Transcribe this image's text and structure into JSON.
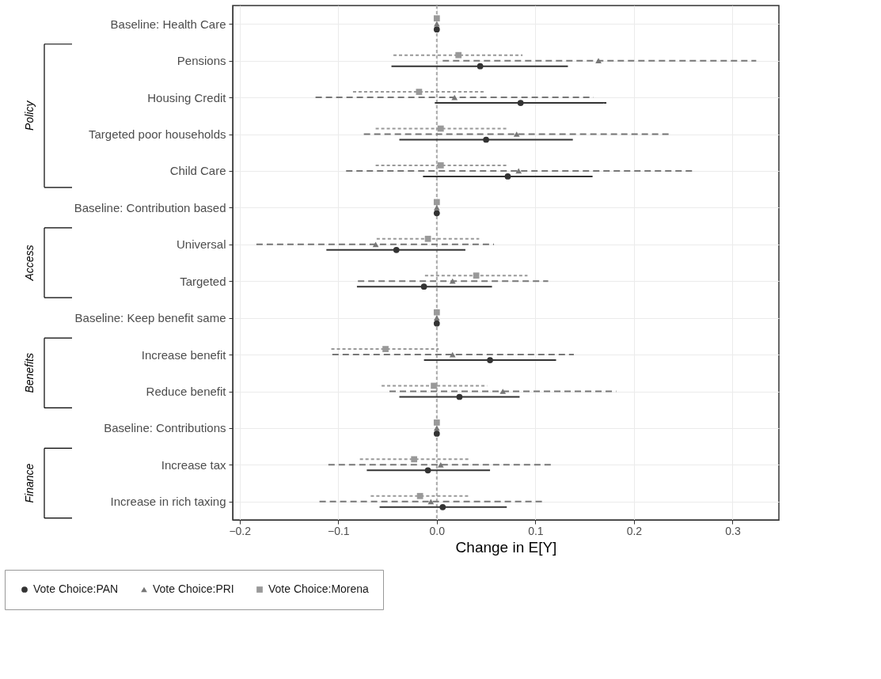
{
  "chart_data": {
    "type": "scatter",
    "orientation": "horizontal",
    "xlabel": "Change in E[Y]",
    "categories": [
      "Baseline: Health Care",
      "Pensions",
      "Housing Credit",
      "Targeted poor households",
      "Child Care",
      "Baseline: Contribution based",
      "Universal",
      "Targeted",
      "Baseline: Keep benefit same",
      "Increase benefit",
      "Reduce benefit",
      "Baseline: Contributions",
      "Increase tax",
      "Increase in rich taxing"
    ],
    "xlim": [
      -0.207,
      0.347
    ],
    "xticks": [
      {
        "value": -0.2,
        "label": "−0.2"
      },
      {
        "value": -0.1,
        "label": "−0.1"
      },
      {
        "value": 0,
        "label": "0.0"
      },
      {
        "value": 0.1,
        "label": "0.1"
      },
      {
        "value": 0.2,
        "label": "0.2"
      },
      {
        "value": 0.3,
        "label": "0.3"
      }
    ],
    "grid": true,
    "legend": "bottom",
    "series": [
      {
        "name": "Vote Choice:PAN",
        "color": "#333333",
        "marker": "circle",
        "line_style": "solid",
        "values": [
          0,
          0.044,
          0.085,
          0.05,
          0.072,
          0,
          -0.041,
          -0.013,
          0,
          0.054,
          0.023,
          0,
          -0.009,
          0.006
        ],
        "errors": [
          null,
          [
            -0.046,
            0.133
          ],
          [
            -0.002,
            0.172
          ],
          [
            -0.038,
            0.138
          ],
          [
            -0.014,
            0.158
          ],
          null,
          [
            -0.112,
            0.029
          ],
          [
            -0.081,
            0.056
          ],
          null,
          [
            -0.013,
            0.121
          ],
          [
            -0.038,
            0.084
          ],
          null,
          [
            -0.071,
            0.054
          ],
          [
            -0.058,
            0.071
          ]
        ]
      },
      {
        "name": "Vote Choice:PRI",
        "color": "#777777",
        "marker": "triangle",
        "line_style": "dashed",
        "values": [
          0,
          0.164,
          0.018,
          0.081,
          0.083,
          0,
          -0.062,
          0.016,
          0,
          0.016,
          0.067,
          0,
          0.004,
          -0.006
        ],
        "errors": [
          null,
          [
            0.006,
            0.324
          ],
          [
            -0.123,
            0.159
          ],
          [
            -0.074,
            0.236
          ],
          [
            -0.092,
            0.259
          ],
          null,
          [
            -0.183,
            0.058
          ],
          [
            -0.08,
            0.113
          ],
          null,
          [
            -0.106,
            0.139
          ],
          [
            -0.048,
            0.182
          ],
          null,
          [
            -0.11,
            0.118
          ],
          [
            -0.119,
            0.109
          ]
        ]
      },
      {
        "name": "Vote Choice:Morena",
        "color": "#999999",
        "marker": "square",
        "line_style": "dotted",
        "values": [
          0,
          0.022,
          -0.018,
          0.004,
          0.004,
          0,
          -0.009,
          0.04,
          0,
          -0.052,
          -0.003,
          0,
          -0.023,
          -0.017
        ],
        "errors": [
          null,
          [
            -0.044,
            0.087
          ],
          [
            -0.085,
            0.049
          ],
          [
            -0.062,
            0.071
          ],
          [
            -0.062,
            0.072
          ],
          null,
          [
            -0.061,
            0.043
          ],
          [
            -0.012,
            0.092
          ],
          null,
          [
            -0.107,
            0.002
          ],
          [
            -0.056,
            0.051
          ],
          null,
          [
            -0.078,
            0.033
          ],
          [
            -0.067,
            0.034
          ]
        ]
      }
    ],
    "ref_lines": [
      {
        "axis": "x",
        "value": 0,
        "line_style": "dotted",
        "color": "#aaaaaa"
      }
    ],
    "annotations": [
      "Policy",
      "Access",
      "Benefits",
      "Finance"
    ]
  }
}
